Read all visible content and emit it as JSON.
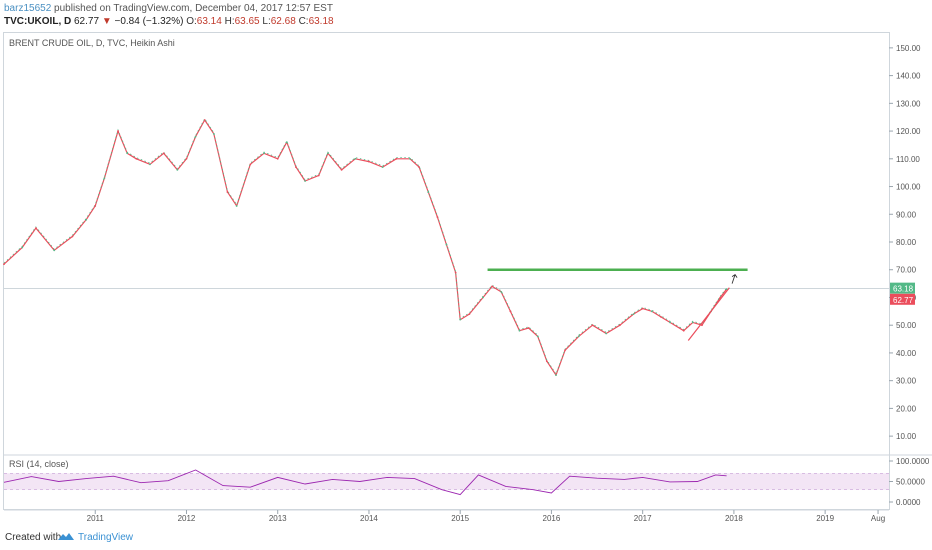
{
  "header": {
    "author": "barz15652",
    "published": "published on TradingView.com, December 04, 2017 12:57 EST",
    "symbol": "TVC:UKOIL, D",
    "last": "62.77",
    "change": "−0.84 (−1.32%)",
    "open_label": "O:",
    "open": "63.14",
    "high_label": "H:",
    "high": "63.65",
    "low_label": "L:",
    "low": "62.68",
    "close_label": "C:",
    "close": "63.18"
  },
  "footer": {
    "created_with": "Created with",
    "brand": "TradingView"
  },
  "colors": {
    "up": "#53b987",
    "down": "#eb4d5c",
    "resistance": "#4caf50",
    "rsi_line": "#9c27b0",
    "rsi_band": "#f3e5f5",
    "price_badge": "#53b987",
    "last_badge": "#eb4d5c"
  },
  "chart_data": [
    {
      "type": "line",
      "title": "BRENT CRUDE OIL, D, TVC, Heikin Ashi",
      "x_labels": [
        "2011",
        "2012",
        "2013",
        "2014",
        "2015",
        "2016",
        "2017",
        "2018",
        "2019",
        "Aug"
      ],
      "y_ticks": [
        "150.00",
        "140.00",
        "130.00",
        "120.00",
        "110.00",
        "100.00",
        "90.00",
        "80.00",
        "70.00",
        "60.00",
        "50.00",
        "40.00",
        "30.00",
        "20.00",
        "10.00"
      ],
      "ylim": [
        5,
        155
      ],
      "x_range": [
        2010.0,
        2019.7
      ],
      "series": [
        {
          "x": [
            2010.0,
            2010.2,
            2010.35,
            2010.55,
            2010.75,
            2010.9,
            2011.0,
            2011.1,
            2011.25,
            2011.35,
            2011.45,
            2011.6,
            2011.75,
            2011.9,
            2012.0,
            2012.1,
            2012.2,
            2012.3,
            2012.45,
            2012.55,
            2012.7,
            2012.85,
            2013.0,
            2013.1,
            2013.2,
            2013.3,
            2013.45,
            2013.55,
            2013.7,
            2013.85,
            2014.0,
            2014.15,
            2014.3,
            2014.45,
            2014.55,
            2014.65,
            2014.75,
            2014.85,
            2014.95,
            2015.0,
            2015.1,
            2015.25,
            2015.35,
            2015.45,
            2015.55,
            2015.65,
            2015.75,
            2015.85,
            2015.95,
            2016.05,
            2016.15,
            2016.3,
            2016.45,
            2016.6,
            2016.75,
            2016.9,
            2017.0,
            2017.1,
            2017.2,
            2017.3,
            2017.45,
            2017.55,
            2017.65,
            2017.75,
            2017.85,
            2017.92
          ],
          "values": [
            72,
            78,
            85,
            77,
            82,
            88,
            93,
            103,
            120,
            112,
            110,
            108,
            112,
            106,
            110,
            118,
            124,
            119,
            98,
            93,
            108,
            112,
            110,
            116,
            107,
            102,
            104,
            112,
            106,
            110,
            109,
            107,
            110,
            110,
            107,
            98,
            89,
            79,
            69,
            52,
            54,
            60,
            64,
            62,
            55,
            48,
            49,
            46,
            37,
            32,
            41,
            46,
            50,
            47,
            50,
            54,
            56,
            55,
            53,
            51,
            48,
            51,
            50,
            55,
            60,
            63
          ]
        }
      ],
      "resistance_level": 70.0,
      "resistance_x": [
        2015.3,
        2018.15
      ],
      "trend_line": {
        "x": [
          2017.5,
          2017.95
        ],
        "y": [
          44.5,
          63.5
        ]
      },
      "last_price_label": "63.18",
      "last_price": 63.18,
      "prev_price_label": "62.77",
      "prev_price": 62.77
    },
    {
      "type": "line",
      "title": "RSI (14, close)",
      "y_ticks": [
        "100.0000",
        "50.0000",
        "0.0000"
      ],
      "ylim": [
        0,
        100
      ],
      "band": [
        30,
        70
      ],
      "series": [
        {
          "x": [
            2010.0,
            2010.3,
            2010.6,
            2010.9,
            2011.2,
            2011.5,
            2011.8,
            2012.1,
            2012.4,
            2012.7,
            2013.0,
            2013.3,
            2013.6,
            2013.9,
            2014.2,
            2014.5,
            2014.8,
            2015.0,
            2015.2,
            2015.5,
            2015.8,
            2016.0,
            2016.2,
            2016.5,
            2016.8,
            2017.0,
            2017.3,
            2017.6,
            2017.8,
            2017.92
          ],
          "values": [
            48,
            62,
            50,
            57,
            63,
            47,
            52,
            78,
            40,
            36,
            60,
            44,
            55,
            50,
            60,
            57,
            30,
            18,
            66,
            38,
            30,
            22,
            63,
            58,
            55,
            60,
            49,
            50,
            66,
            64
          ]
        }
      ]
    }
  ]
}
